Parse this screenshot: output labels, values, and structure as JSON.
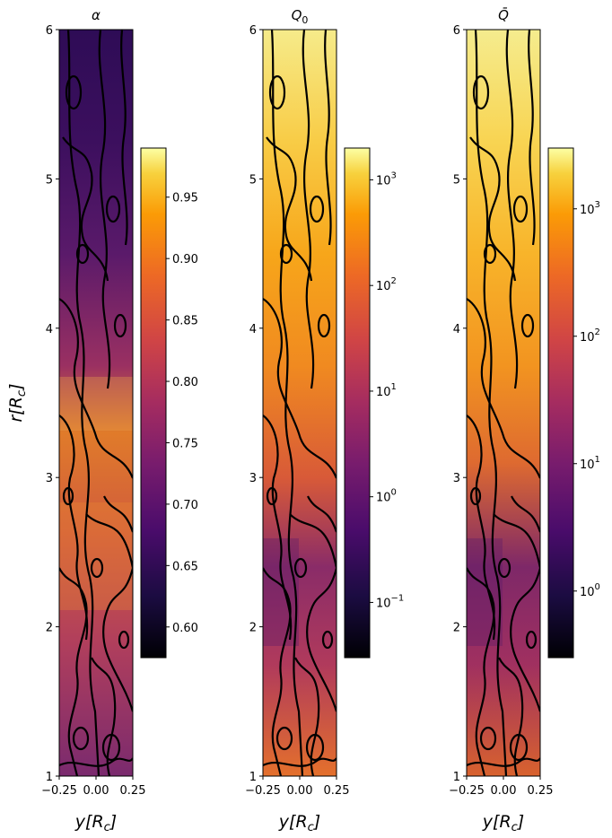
{
  "chart_data": [
    {
      "type": "heatmap",
      "title": "α",
      "xlabel": "y[R",
      "xlabel_sub": "c",
      "xlabel_close": "]",
      "ylabel": "r[R",
      "ylabel_sub": "c",
      "ylabel_close": "]",
      "xlim": [
        -0.25,
        0.25
      ],
      "ylim": [
        1,
        6
      ],
      "xtick_labels": [
        "−0.25",
        "0.00",
        "0.25"
      ],
      "ytick_labels": [
        "1",
        "2",
        "3",
        "4",
        "5",
        "6"
      ],
      "colorbar": {
        "scale": "linear",
        "range": [
          0.575,
          0.99
        ],
        "ticks": [
          {
            "value": 0.6,
            "label": "0.60"
          },
          {
            "value": 0.65,
            "label": "0.65"
          },
          {
            "value": 0.7,
            "label": "0.70"
          },
          {
            "value": 0.75,
            "label": "0.75"
          },
          {
            "value": 0.8,
            "label": "0.80"
          },
          {
            "value": 0.85,
            "label": "0.85"
          },
          {
            "value": 0.9,
            "label": "0.90"
          },
          {
            "value": 0.95,
            "label": "0.95"
          }
        ]
      },
      "colormap": "inferno",
      "contours": "black"
    },
    {
      "type": "heatmap",
      "title_main": "Q",
      "title_sub": "0",
      "xlabel": "y[R",
      "xlabel_sub": "c",
      "xlabel_close": "]",
      "xlim": [
        -0.25,
        0.25
      ],
      "ylim": [
        1,
        6
      ],
      "xtick_labels": [
        "−0.25",
        "0.00",
        "0.25"
      ],
      "ytick_labels": [
        "1",
        "2",
        "3",
        "4",
        "5",
        "6"
      ],
      "colorbar": {
        "scale": "log",
        "range": [
          0.03,
          2000
        ],
        "ticks": [
          {
            "value": 0.1,
            "base": "10",
            "exp": "−1"
          },
          {
            "value": 1,
            "base": "10",
            "exp": "0"
          },
          {
            "value": 10,
            "base": "10",
            "exp": "1"
          },
          {
            "value": 100,
            "base": "10",
            "exp": "2"
          },
          {
            "value": 1000,
            "base": "10",
            "exp": "3"
          }
        ]
      },
      "colormap": "inferno",
      "contours": "black"
    },
    {
      "type": "heatmap",
      "title_main": "Q̄",
      "xlabel": "y[R",
      "xlabel_sub": "c",
      "xlabel_close": "]",
      "xlim": [
        -0.25,
        0.25
      ],
      "ylim": [
        1,
        6
      ],
      "xtick_labels": [
        "−0.25",
        "0.00",
        "0.25"
      ],
      "ytick_labels": [
        "1",
        "2",
        "3",
        "4",
        "5",
        "6"
      ],
      "colorbar": {
        "scale": "log",
        "range": [
          0.3,
          3000
        ],
        "ticks": [
          {
            "value": 1,
            "base": "10",
            "exp": "0"
          },
          {
            "value": 10,
            "base": "10",
            "exp": "1"
          },
          {
            "value": 100,
            "base": "10",
            "exp": "2"
          },
          {
            "value": 1000,
            "base": "10",
            "exp": "3"
          }
        ]
      },
      "colormap": "inferno",
      "contours": "black"
    }
  ]
}
